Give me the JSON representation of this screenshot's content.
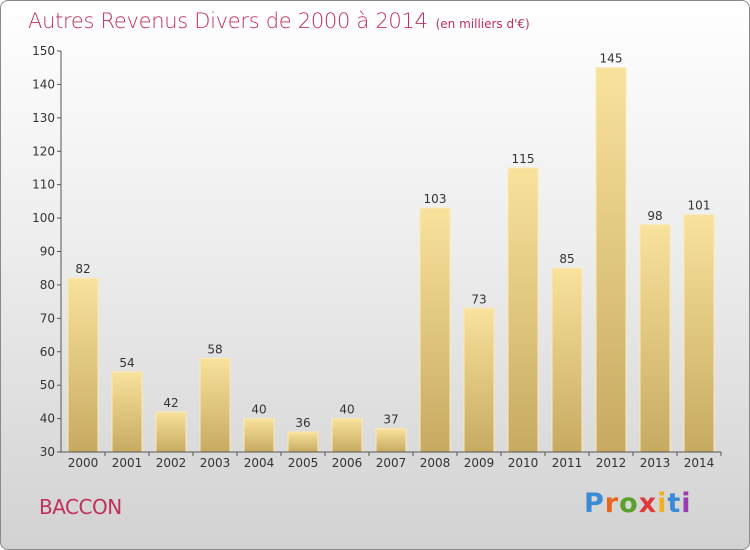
{
  "title": "Autres Revenus Divers de 2000 à 2014",
  "unit_note": "(en milliers d'€)",
  "location": "BACCON",
  "brand": {
    "text": "Proxiti",
    "letter_colors": [
      "#3a8ad6",
      "#e8651a",
      "#5aa12c",
      "#e03a3a",
      "#f0b020",
      "#3a8ad6",
      "#9a3bb0"
    ]
  },
  "colors": {
    "title": "#c0305a",
    "bar_light": "#f8e29c",
    "bar_dark": "#c7aa62",
    "axis": "#555555"
  },
  "chart_data": {
    "type": "bar",
    "categories": [
      "2000",
      "2001",
      "2002",
      "2003",
      "2004",
      "2005",
      "2006",
      "2007",
      "2008",
      "2009",
      "2010",
      "2011",
      "2012",
      "2013",
      "2014"
    ],
    "values": [
      82,
      54,
      42,
      58,
      40,
      36,
      40,
      37,
      103,
      73,
      115,
      85,
      145,
      98,
      101
    ],
    "ylim": [
      30,
      150
    ],
    "yticks": [
      30,
      40,
      50,
      60,
      70,
      80,
      90,
      100,
      110,
      120,
      130,
      140,
      150
    ],
    "grid": false,
    "legend": "none"
  }
}
